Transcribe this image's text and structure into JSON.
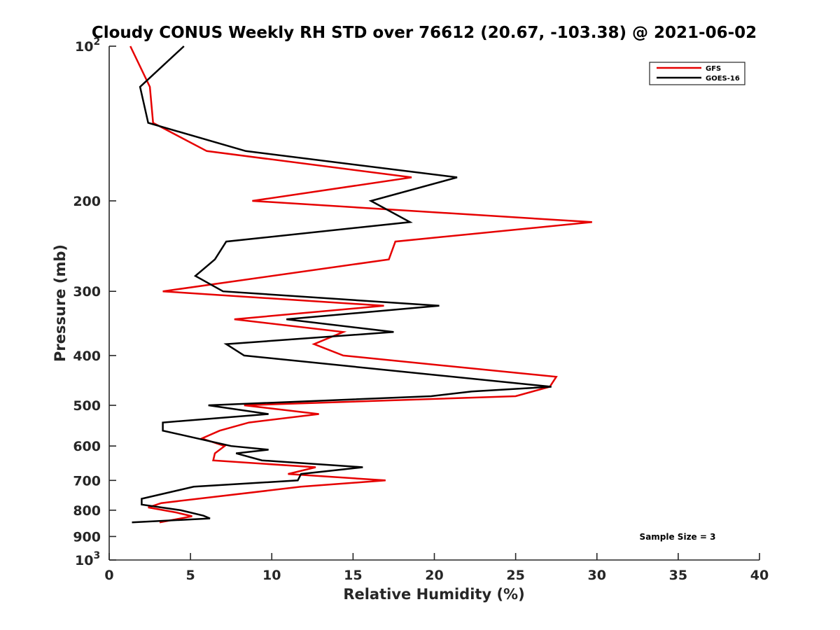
{
  "chart_data": {
    "type": "line",
    "title": "Cloudy CONUS Weekly RH STD over 76612 (20.67, -103.38) @ 2021-06-02",
    "xlabel": "Relative Humidity (%)",
    "ylabel": "Pressure (mb)",
    "xlim": [
      0,
      40
    ],
    "ylim": [
      100,
      1000
    ],
    "yscale": "log",
    "y_reversed": true,
    "grid": false,
    "legend_position": "top-right",
    "x_ticks": [
      0,
      5,
      10,
      15,
      20,
      25,
      30,
      35,
      40
    ],
    "x_tick_labels": [
      "0",
      "5",
      "10",
      "15",
      "20",
      "25",
      "30",
      "35",
      "40"
    ],
    "y_ticks": [
      100,
      200,
      300,
      400,
      500,
      600,
      700,
      800,
      900,
      1000
    ],
    "y_tick_labels": [
      {
        "base": "10",
        "exp": "2"
      },
      {
        "base": "200",
        "exp": ""
      },
      {
        "base": "300",
        "exp": ""
      },
      {
        "base": "400",
        "exp": ""
      },
      {
        "base": "500",
        "exp": ""
      },
      {
        "base": "600",
        "exp": ""
      },
      {
        "base": "700",
        "exp": ""
      },
      {
        "base": "800",
        "exp": ""
      },
      {
        "base": "900",
        "exp": ""
      },
      {
        "base": "10",
        "exp": "3"
      }
    ],
    "annotation": "Sample Size = 3",
    "series": [
      {
        "name": "GFS",
        "color": "#e60000",
        "points": [
          [
            1.3,
            100
          ],
          [
            2.5,
            120
          ],
          [
            2.7,
            141
          ],
          [
            6.0,
            160
          ],
          [
            18.6,
            180
          ],
          [
            8.8,
            200
          ],
          [
            29.7,
            220
          ],
          [
            17.6,
            240
          ],
          [
            17.2,
            260
          ],
          [
            3.3,
            300
          ],
          [
            16.9,
            320
          ],
          [
            7.7,
            340
          ],
          [
            14.4,
            360
          ],
          [
            12.6,
            380
          ],
          [
            14.4,
            400
          ],
          [
            27.5,
            440
          ],
          [
            27.1,
            460
          ],
          [
            25.0,
            480
          ],
          [
            8.3,
            500
          ],
          [
            12.9,
            520
          ],
          [
            8.6,
            540
          ],
          [
            6.8,
            560
          ],
          [
            5.7,
            580
          ],
          [
            7.1,
            600
          ],
          [
            6.5,
            620
          ],
          [
            6.4,
            640
          ],
          [
            12.7,
            660
          ],
          [
            11.0,
            680
          ],
          [
            17.0,
            700
          ],
          [
            11.8,
            720
          ],
          [
            3.2,
            775
          ],
          [
            2.4,
            790
          ],
          [
            4.1,
            808
          ],
          [
            5.1,
            822
          ],
          [
            3.1,
            845
          ]
        ]
      },
      {
        "name": "GOES-16",
        "color": "#000000",
        "points": [
          [
            4.6,
            100
          ],
          [
            1.9,
            120
          ],
          [
            2.4,
            141
          ],
          [
            8.4,
            160
          ],
          [
            21.4,
            180
          ],
          [
            16.1,
            200
          ],
          [
            18.5,
            220
          ],
          [
            7.2,
            240
          ],
          [
            6.5,
            260
          ],
          [
            5.3,
            280
          ],
          [
            7.0,
            300
          ],
          [
            20.3,
            320
          ],
          [
            10.9,
            340
          ],
          [
            17.5,
            360
          ],
          [
            7.2,
            380
          ],
          [
            8.3,
            400
          ],
          [
            27.2,
            460
          ],
          [
            22.3,
            470
          ],
          [
            19.8,
            480
          ],
          [
            6.1,
            500
          ],
          [
            9.8,
            520
          ],
          [
            3.3,
            540
          ],
          [
            3.3,
            560
          ],
          [
            7.5,
            600
          ],
          [
            9.8,
            610
          ],
          [
            7.8,
            620
          ],
          [
            9.4,
            640
          ],
          [
            15.6,
            660
          ],
          [
            11.8,
            680
          ],
          [
            11.6,
            700
          ],
          [
            5.2,
            720
          ],
          [
            2.0,
            760
          ],
          [
            2.0,
            780
          ],
          [
            4.4,
            800
          ],
          [
            5.8,
            820
          ],
          [
            6.2,
            830
          ],
          [
            1.4,
            845
          ]
        ]
      }
    ]
  }
}
